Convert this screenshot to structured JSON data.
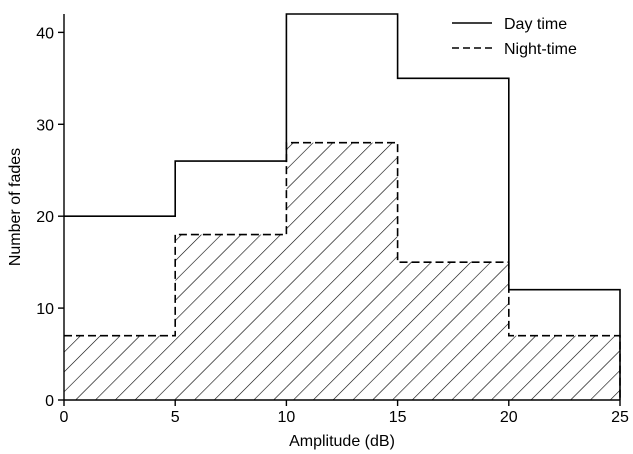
{
  "chart_data": {
    "type": "bar",
    "title": "",
    "xlabel": "Amplitude (dB)",
    "ylabel": "Number of fades",
    "xlim": [
      0,
      25
    ],
    "ylim": [
      0,
      42
    ],
    "x_ticks": [
      0,
      5,
      10,
      15,
      20,
      25
    ],
    "y_ticks": [
      0,
      10,
      20,
      30,
      40
    ],
    "bin_edges": [
      0,
      5,
      10,
      15,
      20,
      25
    ],
    "series": [
      {
        "name": "Day time",
        "values": [
          20,
          26,
          42,
          35,
          12
        ],
        "line_style": "solid",
        "fill": "none"
      },
      {
        "name": "Night-time",
        "values": [
          7,
          18,
          28,
          15,
          7
        ],
        "line_style": "dashed",
        "fill": "diagonal-hatch"
      }
    ],
    "legend_position": "top-right",
    "grid": false
  }
}
